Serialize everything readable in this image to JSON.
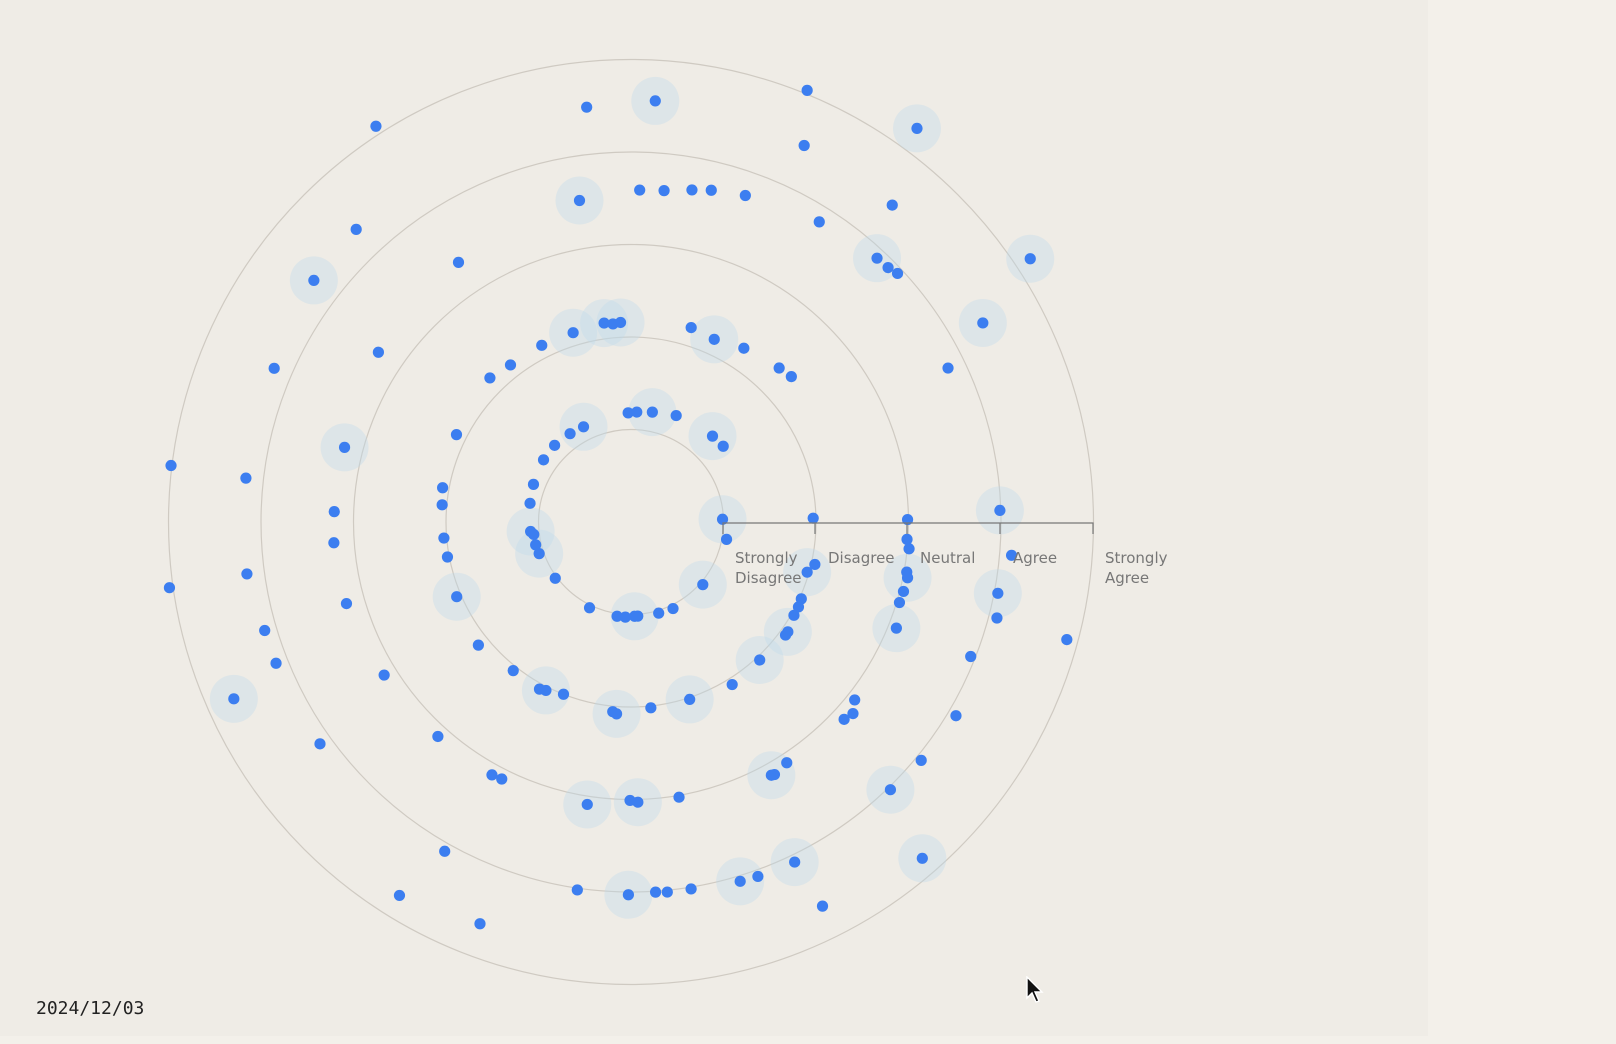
{
  "date_label": "2024/12/03",
  "colors": {
    "dot": "#3c7ef0",
    "halo": "#bcd9ec",
    "ring": "#cfcac2",
    "background": "#efece6"
  },
  "cursor_icon": "arrow-cursor-icon",
  "chart_data": {
    "type": "scatter",
    "coordinate_system": "polar-spiral",
    "scale_labels": [
      [
        "Strongly",
        "Disagree"
      ],
      [
        "Disagree"
      ],
      [
        "Neutral"
      ],
      [
        "Agree"
      ],
      [
        "Strongly",
        "Agree"
      ]
    ],
    "rings": [
      1,
      2,
      3,
      4,
      5
    ],
    "grid": true,
    "points": [
      {
        "r": 0.99,
        "a": -1.7,
        "h": 1
      },
      {
        "r": 1.05,
        "a": 10.3,
        "h": 0
      },
      {
        "r": 1.03,
        "a": 41.1,
        "h": 1
      },
      {
        "r": 1.04,
        "a": 64.1,
        "h": 0
      },
      {
        "r": 1.03,
        "a": 73.1,
        "h": 0
      },
      {
        "r": 1.02,
        "a": 85.9,
        "h": 0
      },
      {
        "r": 1.02,
        "a": 87.8,
        "h": 1
      },
      {
        "r": 1.03,
        "a": 93.4,
        "h": 0
      },
      {
        "r": 1.03,
        "a": 98.4,
        "h": 0
      },
      {
        "r": 1.03,
        "a": 115.8,
        "h": 0
      },
      {
        "r": 1.02,
        "a": 143.4,
        "h": 0
      },
      {
        "r": 1.05,
        "a": 161.0,
        "h": 1
      },
      {
        "r": 1.06,
        "a": 166.5,
        "h": 0
      },
      {
        "r": 1.06,
        "a": 172.7,
        "h": 0
      },
      {
        "r": 1.09,
        "a": 174.6,
        "h": 1
      },
      {
        "r": 1.11,
        "a": 190.5,
        "h": 0
      },
      {
        "r": 1.13,
        "a": 201.1,
        "h": 0
      },
      {
        "r": 1.16,
        "a": 215.4,
        "h": 0
      },
      {
        "r": 1.17,
        "a": 225.1,
        "h": 0
      },
      {
        "r": 1.16,
        "a": 235.4,
        "h": 0
      },
      {
        "r": 1.15,
        "a": 243.5,
        "h": 1
      },
      {
        "r": 1.18,
        "a": 268.5,
        "h": 0
      },
      {
        "r": 1.19,
        "a": 273.0,
        "h": 0
      },
      {
        "r": 1.21,
        "a": 281.0,
        "h": 1
      },
      {
        "r": 1.25,
        "a": 293.0,
        "h": 0
      },
      {
        "r": 1.28,
        "a": 313.5,
        "h": 1
      },
      {
        "r": 1.29,
        "a": 320.6,
        "h": 0
      },
      {
        "r": 1.97,
        "a": -1.2,
        "h": 0
      },
      {
        "r": 2.04,
        "a": 13.0,
        "h": 0
      },
      {
        "r": 1.98,
        "a": 15.9,
        "h": 1
      },
      {
        "r": 2.02,
        "a": 24.3,
        "h": 0
      },
      {
        "r": 2.03,
        "a": 26.9,
        "h": 0
      },
      {
        "r": 2.03,
        "a": 29.8,
        "h": 0
      },
      {
        "r": 2.07,
        "a": 35.0,
        "h": 1
      },
      {
        "r": 2.07,
        "a": 36.2,
        "h": 0
      },
      {
        "r": 2.04,
        "a": 47.0,
        "h": 1
      },
      {
        "r": 2.07,
        "a": 58.1,
        "h": 0
      },
      {
        "r": 2.02,
        "a": 71.7,
        "h": 1
      },
      {
        "r": 2.02,
        "a": 83.9,
        "h": 0
      },
      {
        "r": 2.08,
        "a": 94.3,
        "h": 1
      },
      {
        "r": 2.06,
        "a": 95.5,
        "h": 0
      },
      {
        "r": 2.0,
        "a": 111.4,
        "h": 0
      },
      {
        "r": 2.04,
        "a": 116.8,
        "h": 1
      },
      {
        "r": 2.06,
        "a": 118.7,
        "h": 0
      },
      {
        "r": 2.05,
        "a": 128.4,
        "h": 0
      },
      {
        "r": 2.12,
        "a": 141.1,
        "h": 0
      },
      {
        "r": 2.05,
        "a": 156.8,
        "h": 1
      },
      {
        "r": 2.02,
        "a": 169.2,
        "h": 0
      },
      {
        "r": 2.03,
        "a": 175.1,
        "h": 0
      },
      {
        "r": 2.05,
        "a": 185.2,
        "h": 0
      },
      {
        "r": 2.07,
        "a": 190.3,
        "h": 0
      },
      {
        "r": 2.11,
        "a": 206.6,
        "h": 0
      },
      {
        "r": 2.18,
        "a": 225.6,
        "h": 0
      },
      {
        "r": 2.14,
        "a": 232.5,
        "h": 0
      },
      {
        "r": 2.14,
        "a": 243.2,
        "h": 0
      },
      {
        "r": 2.14,
        "a": 253.0,
        "h": 1
      },
      {
        "r": 2.17,
        "a": 262.3,
        "h": 1
      },
      {
        "r": 2.15,
        "a": 264.8,
        "h": 0
      },
      {
        "r": 2.16,
        "a": 267.0,
        "h": 1
      },
      {
        "r": 2.2,
        "a": 287.2,
        "h": 0
      },
      {
        "r": 2.17,
        "a": 294.5,
        "h": 1
      },
      {
        "r": 2.24,
        "a": 303.0,
        "h": 0
      },
      {
        "r": 2.31,
        "a": 313.9,
        "h": 0
      },
      {
        "r": 2.34,
        "a": 317.8,
        "h": 0
      },
      {
        "r": 2.99,
        "a": -0.5,
        "h": 0
      },
      {
        "r": 2.99,
        "a": 3.6,
        "h": 0
      },
      {
        "r": 3.02,
        "a": 5.5,
        "h": 0
      },
      {
        "r": 3.03,
        "a": 10.3,
        "h": 0
      },
      {
        "r": 3.05,
        "a": 11.4,
        "h": 1
      },
      {
        "r": 3.04,
        "a": 14.3,
        "h": 0
      },
      {
        "r": 3.03,
        "a": 16.7,
        "h": 0
      },
      {
        "r": 3.09,
        "a": 21.8,
        "h": 1
      },
      {
        "r": 3.09,
        "a": 38.5,
        "h": 0
      },
      {
        "r": 3.17,
        "a": 40.8,
        "h": 0
      },
      {
        "r": 3.14,
        "a": 42.8,
        "h": 0
      },
      {
        "r": 3.1,
        "a": 57.1,
        "h": 0
      },
      {
        "r": 3.14,
        "a": 60.4,
        "h": 0
      },
      {
        "r": 3.13,
        "a": 61.0,
        "h": 1
      },
      {
        "r": 3.02,
        "a": 80.1,
        "h": 0
      },
      {
        "r": 3.03,
        "a": 88.6,
        "h": 1
      },
      {
        "r": 3.01,
        "a": 90.2,
        "h": 0
      },
      {
        "r": 3.09,
        "a": 98.8,
        "h": 1
      },
      {
        "r": 3.11,
        "a": 116.7,
        "h": 0
      },
      {
        "r": 3.12,
        "a": 118.8,
        "h": 0
      },
      {
        "r": 3.12,
        "a": 132.0,
        "h": 0
      },
      {
        "r": 3.14,
        "a": 148.2,
        "h": 0
      },
      {
        "r": 3.2,
        "a": 164.0,
        "h": 0
      },
      {
        "r": 3.22,
        "a": 176.0,
        "h": 0
      },
      {
        "r": 3.21,
        "a": 182.0,
        "h": 0
      },
      {
        "r": 3.2,
        "a": 194.6,
        "h": 1
      },
      {
        "r": 3.29,
        "a": 213.9,
        "h": 0
      },
      {
        "r": 3.37,
        "a": 236.4,
        "h": 0
      },
      {
        "r": 3.52,
        "a": 260.9,
        "h": 1
      },
      {
        "r": 3.59,
        "a": 271.5,
        "h": 0
      },
      {
        "r": 3.6,
        "a": 275.7,
        "h": 0
      },
      {
        "r": 3.65,
        "a": 280.4,
        "h": 0
      },
      {
        "r": 3.69,
        "a": 283.6,
        "h": 0
      },
      {
        "r": 3.74,
        "a": 289.3,
        "h": 0
      },
      {
        "r": 3.83,
        "a": 302.1,
        "h": 0
      },
      {
        "r": 3.9,
        "a": 313.0,
        "h": 1
      },
      {
        "r": 3.91,
        "a": 315.3,
        "h": 0
      },
      {
        "r": 3.94,
        "a": 317.0,
        "h": 0
      },
      {
        "r": 3.81,
        "a": 334.1,
        "h": 0
      },
      {
        "r": 3.99,
        "a": -1.8,
        "h": 1
      },
      {
        "r": 4.13,
        "a": 5.0,
        "h": 0
      },
      {
        "r": 4.04,
        "a": 11.0,
        "h": 1
      },
      {
        "r": 4.09,
        "a": 14.7,
        "h": 0
      },
      {
        "r": 3.95,
        "a": 21.6,
        "h": 0
      },
      {
        "r": 4.09,
        "a": 30.8,
        "h": 0
      },
      {
        "r": 4.06,
        "a": 39.4,
        "h": 0
      },
      {
        "r": 4.03,
        "a": 45.9,
        "h": 1
      },
      {
        "r": 4.08,
        "a": 64.3,
        "h": 1
      },
      {
        "r": 4.07,
        "a": 70.3,
        "h": 0
      },
      {
        "r": 4.06,
        "a": 73.1,
        "h": 1
      },
      {
        "r": 4.02,
        "a": 80.7,
        "h": 0
      },
      {
        "r": 4.02,
        "a": 84.4,
        "h": 0
      },
      {
        "r": 4.01,
        "a": 86.2,
        "h": 0
      },
      {
        "r": 4.03,
        "a": 90.4,
        "h": 1
      },
      {
        "r": 4.02,
        "a": 98.3,
        "h": 0
      },
      {
        "r": 4.09,
        "a": 119.5,
        "h": 0
      },
      {
        "r": 4.13,
        "a": 144.5,
        "h": 0
      },
      {
        "r": 4.13,
        "a": 158.3,
        "h": 0
      },
      {
        "r": 4.13,
        "a": 163.5,
        "h": 0
      },
      {
        "r": 4.19,
        "a": 172.3,
        "h": 0
      },
      {
        "r": 4.19,
        "a": 186.5,
        "h": 0
      },
      {
        "r": 4.2,
        "a": 203.3,
        "h": 0
      },
      {
        "r": 4.31,
        "a": 217.3,
        "h": 1
      },
      {
        "r": 4.34,
        "a": 226.8,
        "h": 0
      },
      {
        "r": 4.51,
        "a": 263.9,
        "h": 0
      },
      {
        "r": 4.56,
        "a": 273.3,
        "h": 1
      },
      {
        "r": 4.48,
        "a": 294.7,
        "h": 0
      },
      {
        "r": 4.44,
        "a": 309.5,
        "h": 0
      },
      {
        "r": 4.37,
        "a": 330.5,
        "h": 1
      },
      {
        "r": 4.88,
        "a": 15.1,
        "h": 0
      },
      {
        "r": 4.81,
        "a": 49.1,
        "h": 1
      },
      {
        "r": 4.64,
        "a": 63.5,
        "h": 0
      },
      {
        "r": 4.64,
        "a": 110.6,
        "h": 0
      },
      {
        "r": 4.75,
        "a": 121.8,
        "h": 0
      },
      {
        "r": 4.7,
        "a": 156.0,
        "h": 1
      },
      {
        "r": 5.04,
        "a": 171.9,
        "h": 0
      },
      {
        "r": 5.01,
        "a": 187.0,
        "h": 0
      },
      {
        "r": 5.09,
        "a": 237.2,
        "h": 0
      },
      {
        "r": 5.04,
        "a": 292.2,
        "h": 0
      },
      {
        "r": 5.26,
        "a": 306.0,
        "h": 1
      },
      {
        "r": 5.17,
        "a": 326.6,
        "h": 1
      }
    ]
  }
}
